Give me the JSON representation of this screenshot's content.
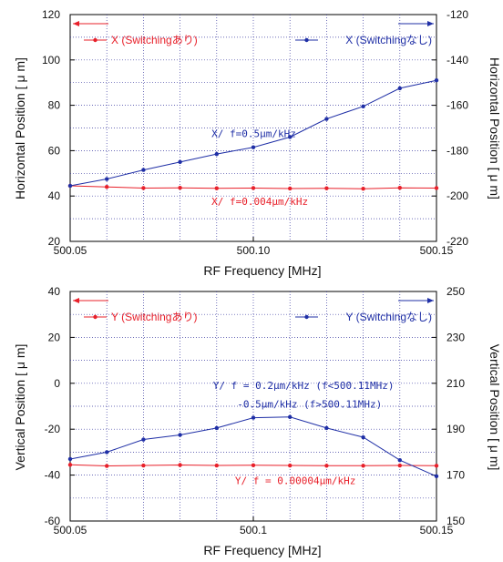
{
  "colors": {
    "red": "#e8202a",
    "blue": "#1f2fa6",
    "grid": "#3a3aa0"
  },
  "chart_data": [
    {
      "type": "line",
      "xlabel": "RF Frequency [MHz]",
      "ylabel_left": "Horizontal Position [ μ m]",
      "ylabel_right": "Horizontal Position [ μ m]",
      "xlim": [
        500.05,
        500.15
      ],
      "ylim_left": [
        20,
        120
      ],
      "ylim_right": [
        -220,
        -120
      ],
      "x_ticks": [
        500.05,
        500.1,
        500.15
      ],
      "x_tick_labels": [
        "500.05",
        "500.10",
        "500.15"
      ],
      "x_minor_step": 0.01,
      "yl_ticks": [
        20,
        40,
        60,
        80,
        100,
        120
      ],
      "yr_ticks": [
        -220,
        -200,
        -180,
        -160,
        -140,
        -120
      ],
      "grid": true,
      "x": [
        500.05,
        500.06,
        500.07,
        500.08,
        500.09,
        500.1,
        500.11,
        500.12,
        500.13,
        500.14,
        500.15
      ],
      "series": [
        {
          "name": "X (Switchingあり)",
          "axis": "left",
          "color": "#e8202a",
          "values": [
            44.5,
            44.0,
            43.5,
            43.6,
            43.4,
            43.5,
            43.3,
            43.4,
            43.2,
            43.6,
            43.5
          ]
        },
        {
          "name": "X (Switchingなし)",
          "axis": "right",
          "color": "#1f2fa6",
          "values": [
            -195.5,
            -192.5,
            -188.5,
            -185,
            -181.5,
            -178.5,
            -174,
            -166,
            -160.5,
            -152.5,
            -149
          ]
        }
      ],
      "legend_arrows": {
        "left": "left-axis",
        "right": "right-axis"
      },
      "annotations": [
        {
          "text": "X/  f=0.5μm/kHz",
          "color": "#1f2fa6",
          "xv": 500.0886,
          "yl": 66
        },
        {
          "text": "X/  f=0.004μm/kHz",
          "color": "#e8202a",
          "xv": 500.0886,
          "yl": 36
        }
      ]
    },
    {
      "type": "line",
      "xlabel": "RF Frequency [MHz]",
      "ylabel_left": "Vertical Position [ μ m]",
      "ylabel_right": "Vertical Position [ μ m]",
      "xlim": [
        500.05,
        500.15
      ],
      "ylim_left": [
        -60,
        40
      ],
      "ylim_right": [
        150,
        250
      ],
      "x_ticks": [
        500.05,
        500.1,
        500.15
      ],
      "x_tick_labels": [
        "500.05",
        "500.1",
        "500.15"
      ],
      "x_minor_step": 0.01,
      "yl_ticks": [
        -60,
        -40,
        -20,
        0,
        20,
        40
      ],
      "yr_ticks": [
        150,
        170,
        190,
        210,
        230,
        250
      ],
      "grid": true,
      "x": [
        500.05,
        500.06,
        500.07,
        500.08,
        500.09,
        500.1,
        500.11,
        500.12,
        500.13,
        500.14,
        500.15
      ],
      "series": [
        {
          "name": "Y (Switchingあり)",
          "axis": "left",
          "color": "#e8202a",
          "values": [
            -35.5,
            -36.0,
            -35.8,
            -35.6,
            -35.8,
            -35.7,
            -35.8,
            -35.9,
            -35.9,
            -35.8,
            -35.9
          ]
        },
        {
          "name": "Y (Switchingなし)",
          "axis": "right",
          "color": "#1f2fa6",
          "values": [
            177,
            180,
            185.5,
            187.5,
            190.5,
            195,
            195.3,
            190.5,
            186.5,
            176.5,
            169.5
          ]
        }
      ],
      "legend_arrows": {
        "left": "left-axis",
        "right": "right-axis"
      },
      "annotations": [
        {
          "text": "Y/  f = 0.2μm/kHz  (f<500.11MHz)",
          "color": "#1f2fa6",
          "xv": 500.089,
          "yl": -2.5
        },
        {
          "text": "-0.5μm/kHz (f>500.11MHz)",
          "color": "#1f2fa6",
          "xv": 500.0956,
          "yl": -10.5
        },
        {
          "text": "Y/  f = 0.00004μm/kHz",
          "color": "#e8202a",
          "xv": 500.095,
          "yl": -44
        }
      ]
    }
  ]
}
